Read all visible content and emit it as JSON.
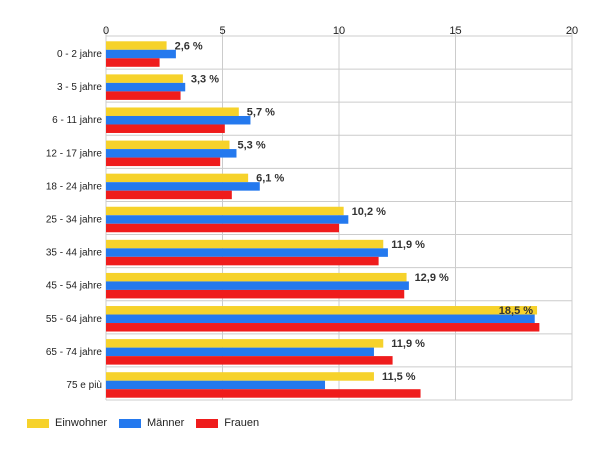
{
  "chart_data": {
    "type": "bar",
    "orientation": "horizontal",
    "categories": [
      "0 - 2 jahre",
      "3 - 5 jahre",
      "6 - 11 jahre",
      "12 - 17 jahre",
      "18 - 24 jahre",
      "25 - 34 jahre",
      "35 - 44 jahre",
      "45 - 54 jahre",
      "55 - 64 jahre",
      "65 - 74 jahre",
      "75 e più"
    ],
    "series": [
      {
        "name": "Einwohner",
        "color": "#f6d22b",
        "values": [
          2.6,
          3.3,
          5.7,
          5.3,
          6.1,
          10.2,
          11.9,
          12.9,
          18.5,
          11.9,
          11.5
        ]
      },
      {
        "name": "Männer",
        "color": "#2479ee",
        "values": [
          3.0,
          3.4,
          6.2,
          5.6,
          6.6,
          10.4,
          12.1,
          13.0,
          18.4,
          11.5,
          9.4
        ]
      },
      {
        "name": "Frauen",
        "color": "#ef1c1c",
        "values": [
          2.3,
          3.2,
          5.1,
          4.9,
          5.4,
          10.0,
          11.7,
          12.8,
          18.6,
          12.3,
          13.5
        ]
      }
    ],
    "data_labels": [
      "2,6 %",
      "3,3 %",
      "5,7 %",
      "5,3 %",
      "6,1 %",
      "10,2 %",
      "11,9 %",
      "12,9 %",
      "18,5 %",
      "11,9 %",
      "11,5 %"
    ],
    "x_ticks": [
      "0",
      "5",
      "10",
      "15",
      "20"
    ],
    "xlim": [
      0,
      20
    ],
    "grid": true,
    "legend_position": "bottom-left"
  }
}
